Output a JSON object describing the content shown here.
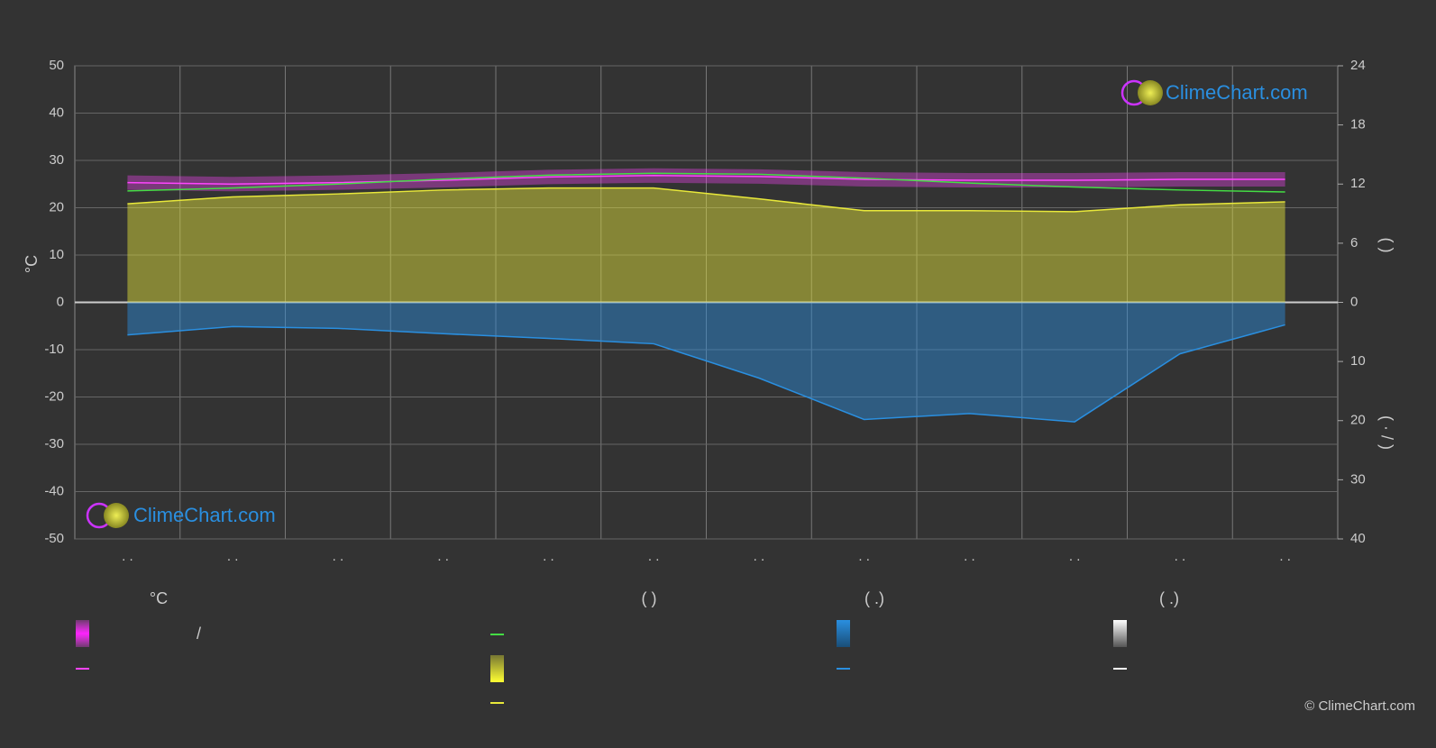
{
  "chart_data": {
    "type": "line",
    "ylabel": "°C",
    "y2label": "(          )",
    "y3label": "(  ·  /  )",
    "categories": [
      ". .",
      ". .",
      ". .",
      ". .",
      ". .",
      ". .",
      ". .",
      ". .",
      ". .",
      ". .",
      ". .",
      ". ."
    ],
    "ylim": [
      -50,
      50
    ],
    "yticks": [
      50,
      40,
      30,
      20,
      10,
      0,
      -10,
      -20,
      -30,
      -40,
      -50
    ],
    "y2lim": [
      0,
      24
    ],
    "y2ticks": [
      0,
      6,
      12,
      18,
      24
    ],
    "y3lim": [
      0,
      40
    ],
    "y3ticks": [
      10,
      20,
      30,
      40
    ],
    "grid": true,
    "series": [
      {
        "color": "#ff44ff",
        "values": [
          25.3,
          25.0,
          25.3,
          25.8,
          26.5,
          26.8,
          26.6,
          26.0,
          25.8,
          25.8,
          26.0,
          26.0
        ]
      },
      {
        "color": "#44dd44",
        "axis": "y2",
        "values": [
          11.3,
          11.6,
          12.0,
          12.5,
          12.9,
          13.1,
          13.0,
          12.6,
          12.1,
          11.7,
          11.4,
          11.2
        ]
      },
      {
        "color": "#e8e83a",
        "axis": "y2",
        "fill": true,
        "values": [
          10.0,
          10.7,
          11.0,
          11.4,
          11.6,
          11.6,
          10.5,
          9.3,
          9.3,
          9.2,
          9.9,
          10.2
        ]
      },
      {
        "color": "#2a8fe0",
        "axis": "y3",
        "fill": true,
        "values": [
          5.5,
          4.1,
          4.4,
          5.3,
          6.1,
          7.0,
          12.8,
          19.8,
          18.8,
          20.2,
          8.7,
          3.8
        ]
      }
    ]
  },
  "legend": {
    "headers": [
      "°C",
      "(          )",
      "(    .)",
      "(    .)"
    ],
    "slash": "/"
  },
  "watermark": "ClimeChart.com",
  "copyright": "© ClimeChart.com"
}
